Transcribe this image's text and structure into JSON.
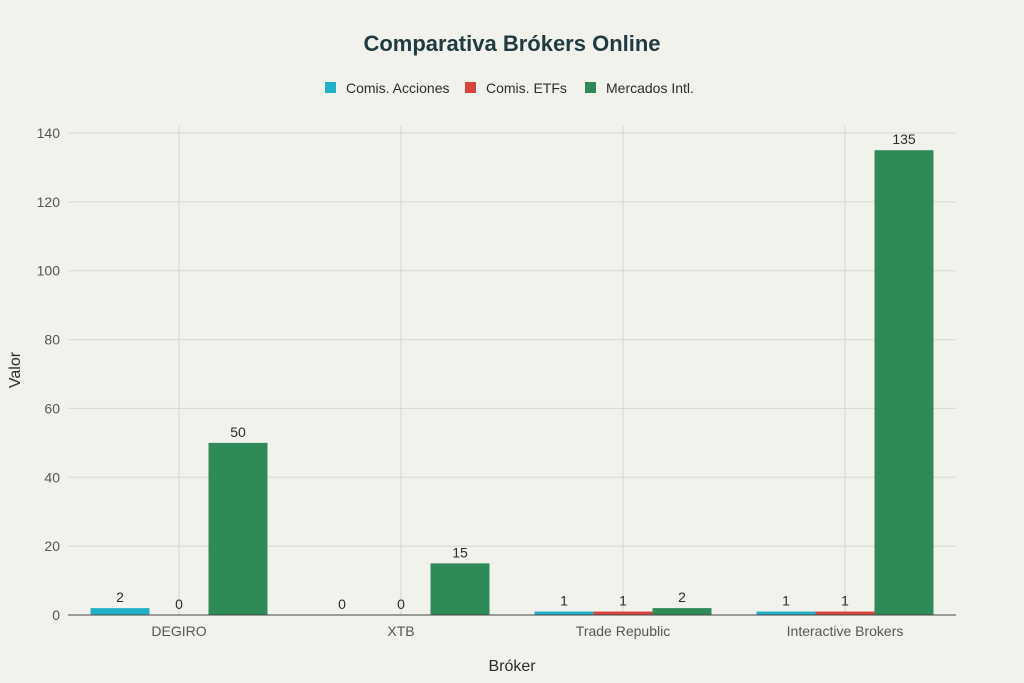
{
  "chart_data": {
    "type": "bar",
    "title": "Comparativa Brókers Online",
    "xlabel": "Bróker",
    "ylabel": "Valor",
    "categories": [
      "DEGIRO",
      "XTB",
      "Trade Republic",
      "Interactive Brokers"
    ],
    "series": [
      {
        "name": "Comis. Acciones",
        "color": "#21b0c8",
        "values": [
          2,
          0,
          1,
          1
        ]
      },
      {
        "name": "Comis. ETFs",
        "color": "#d9433d",
        "values": [
          0,
          0,
          1,
          1
        ]
      },
      {
        "name": "Mercados Intl.",
        "color": "#2e8b57",
        "values": [
          50,
          15,
          2,
          135
        ]
      }
    ],
    "ylim": [
      0,
      140
    ],
    "yticks": [
      0,
      20,
      40,
      60,
      80,
      100,
      120,
      140
    ],
    "grid": true,
    "legend_position": "top-center"
  }
}
